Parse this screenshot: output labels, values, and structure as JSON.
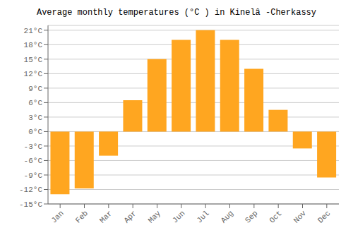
{
  "chart_data": {
    "type": "bar",
    "title": "Average monthly temperatures (°C ) in Kinelâ  -Cherkassy",
    "categories": [
      "Jan",
      "Feb",
      "Mar",
      "Apr",
      "May",
      "Jun",
      "Jul",
      "Aug",
      "Sep",
      "Oct",
      "Nov",
      "Dec"
    ],
    "values": [
      -13.0,
      -11.8,
      -5.0,
      6.5,
      15.0,
      19.0,
      21.0,
      19.0,
      13.0,
      4.5,
      -3.5,
      -9.5
    ],
    "color": "#FFA620",
    "ylim": [
      -15,
      22
    ],
    "yticks": [
      {
        "value": -15,
        "label": "-15°C"
      },
      {
        "value": -12,
        "label": "-12°C"
      },
      {
        "value": -9,
        "label": "-9°C"
      },
      {
        "value": -6,
        "label": "-6°C"
      },
      {
        "value": -3,
        "label": "-3°C"
      },
      {
        "value": 0,
        "label": "0°C"
      },
      {
        "value": 3,
        "label": "3°C"
      },
      {
        "value": 6,
        "label": "6°C"
      },
      {
        "value": 9,
        "label": "9°C"
      },
      {
        "value": 12,
        "label": "12°C"
      },
      {
        "value": 15,
        "label": "15°C"
      },
      {
        "value": 18,
        "label": "18°C"
      },
      {
        "value": 21,
        "label": "21°C"
      }
    ],
    "grid": true
  }
}
